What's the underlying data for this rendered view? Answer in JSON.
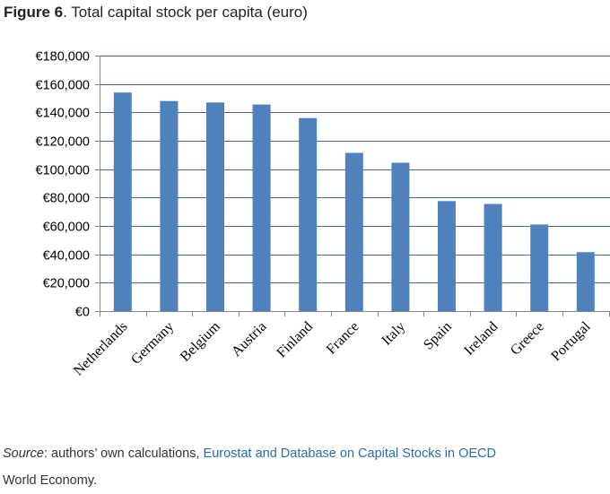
{
  "header": {
    "figure_label": "Figure 6",
    "separator": ".",
    "title": " Total capital stock per capita (euro)"
  },
  "chart_data": {
    "type": "bar",
    "title": "Total capital stock per capita (euro)",
    "xlabel": "",
    "ylabel": "",
    "ylim": [
      0,
      180000
    ],
    "yticks": [
      0,
      20000,
      40000,
      60000,
      80000,
      100000,
      120000,
      140000,
      160000,
      180000
    ],
    "ytick_labels": [
      "€0",
      "€20,000",
      "€40,000",
      "€60,000",
      "€80,000",
      "€100,000",
      "€120,000",
      "€140,000",
      "€160,000",
      "€180,000"
    ],
    "grid": true,
    "legend": "none",
    "categories": [
      "Netherlands",
      "Germany",
      "Belgium",
      "Austria",
      "Finland",
      "France",
      "Italy",
      "Spain",
      "Ireland",
      "Greece",
      "Portugal"
    ],
    "values": [
      154000,
      148000,
      147000,
      145500,
      136000,
      111500,
      104500,
      77500,
      75500,
      61000,
      41500
    ],
    "colors": {
      "bar": "#4f81bd",
      "grid": "#4a6a8c",
      "axis": "#868686"
    }
  },
  "footer": {
    "source_label": "Source",
    "source_colon": ": authors’ own calculations, ",
    "source_link": "Eurostat and Database on Capital Stocks in OECD",
    "line2": "World Economy."
  }
}
